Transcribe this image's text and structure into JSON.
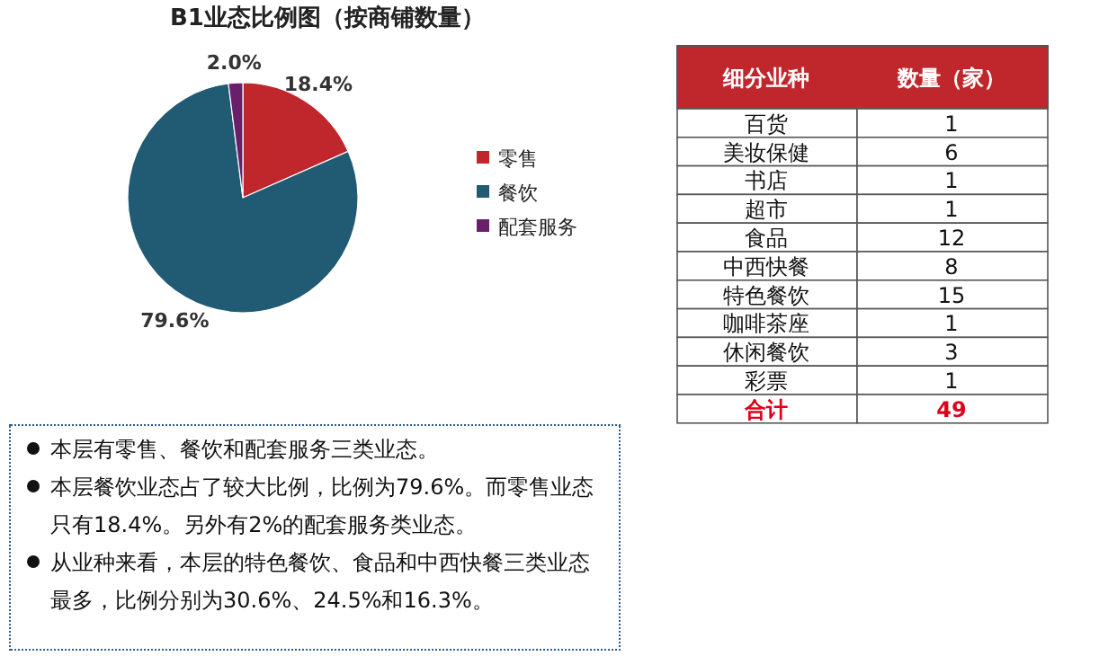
{
  "chart_data": [
    {
      "type": "pie",
      "title": "B1业态比例图（按商铺数量）",
      "categories": [
        "零售",
        "餐饮",
        "配套服务"
      ],
      "values": [
        18.4,
        79.6,
        2.0
      ],
      "colors": [
        "#c0272d",
        "#215a73",
        "#6a1f6b"
      ],
      "value_labels": [
        "18.4%",
        "79.6%",
        "2.0%"
      ],
      "legend": "right"
    },
    {
      "type": "other",
      "xlabel": "细分业种",
      "ylabel": "数量（家）",
      "categories": [
        "百货",
        "美妆保健",
        "书店",
        "超市",
        "食品",
        "中西快餐",
        "特色餐饮",
        "咖啡茶座",
        "休闲餐饮",
        "彩票",
        "合计"
      ],
      "values": [
        1,
        6,
        1,
        1,
        12,
        8,
        15,
        1,
        3,
        1,
        49
      ],
      "data_labels": true
    },
    {
      "type": "other",
      "annotations": [
        "本层有零售、餐饮和配套服务三类业态。",
        "本层餐饮业态占了较大比例，比例为79.6%。而零售业态只有18.4%。另外有2%的配套服务类业态。",
        "从业种来看，本层的特色餐饮、食品和中西快餐三类业态最多，比例分别为30.6%、24.5%和16.3%。"
      ]
    }
  ]
}
